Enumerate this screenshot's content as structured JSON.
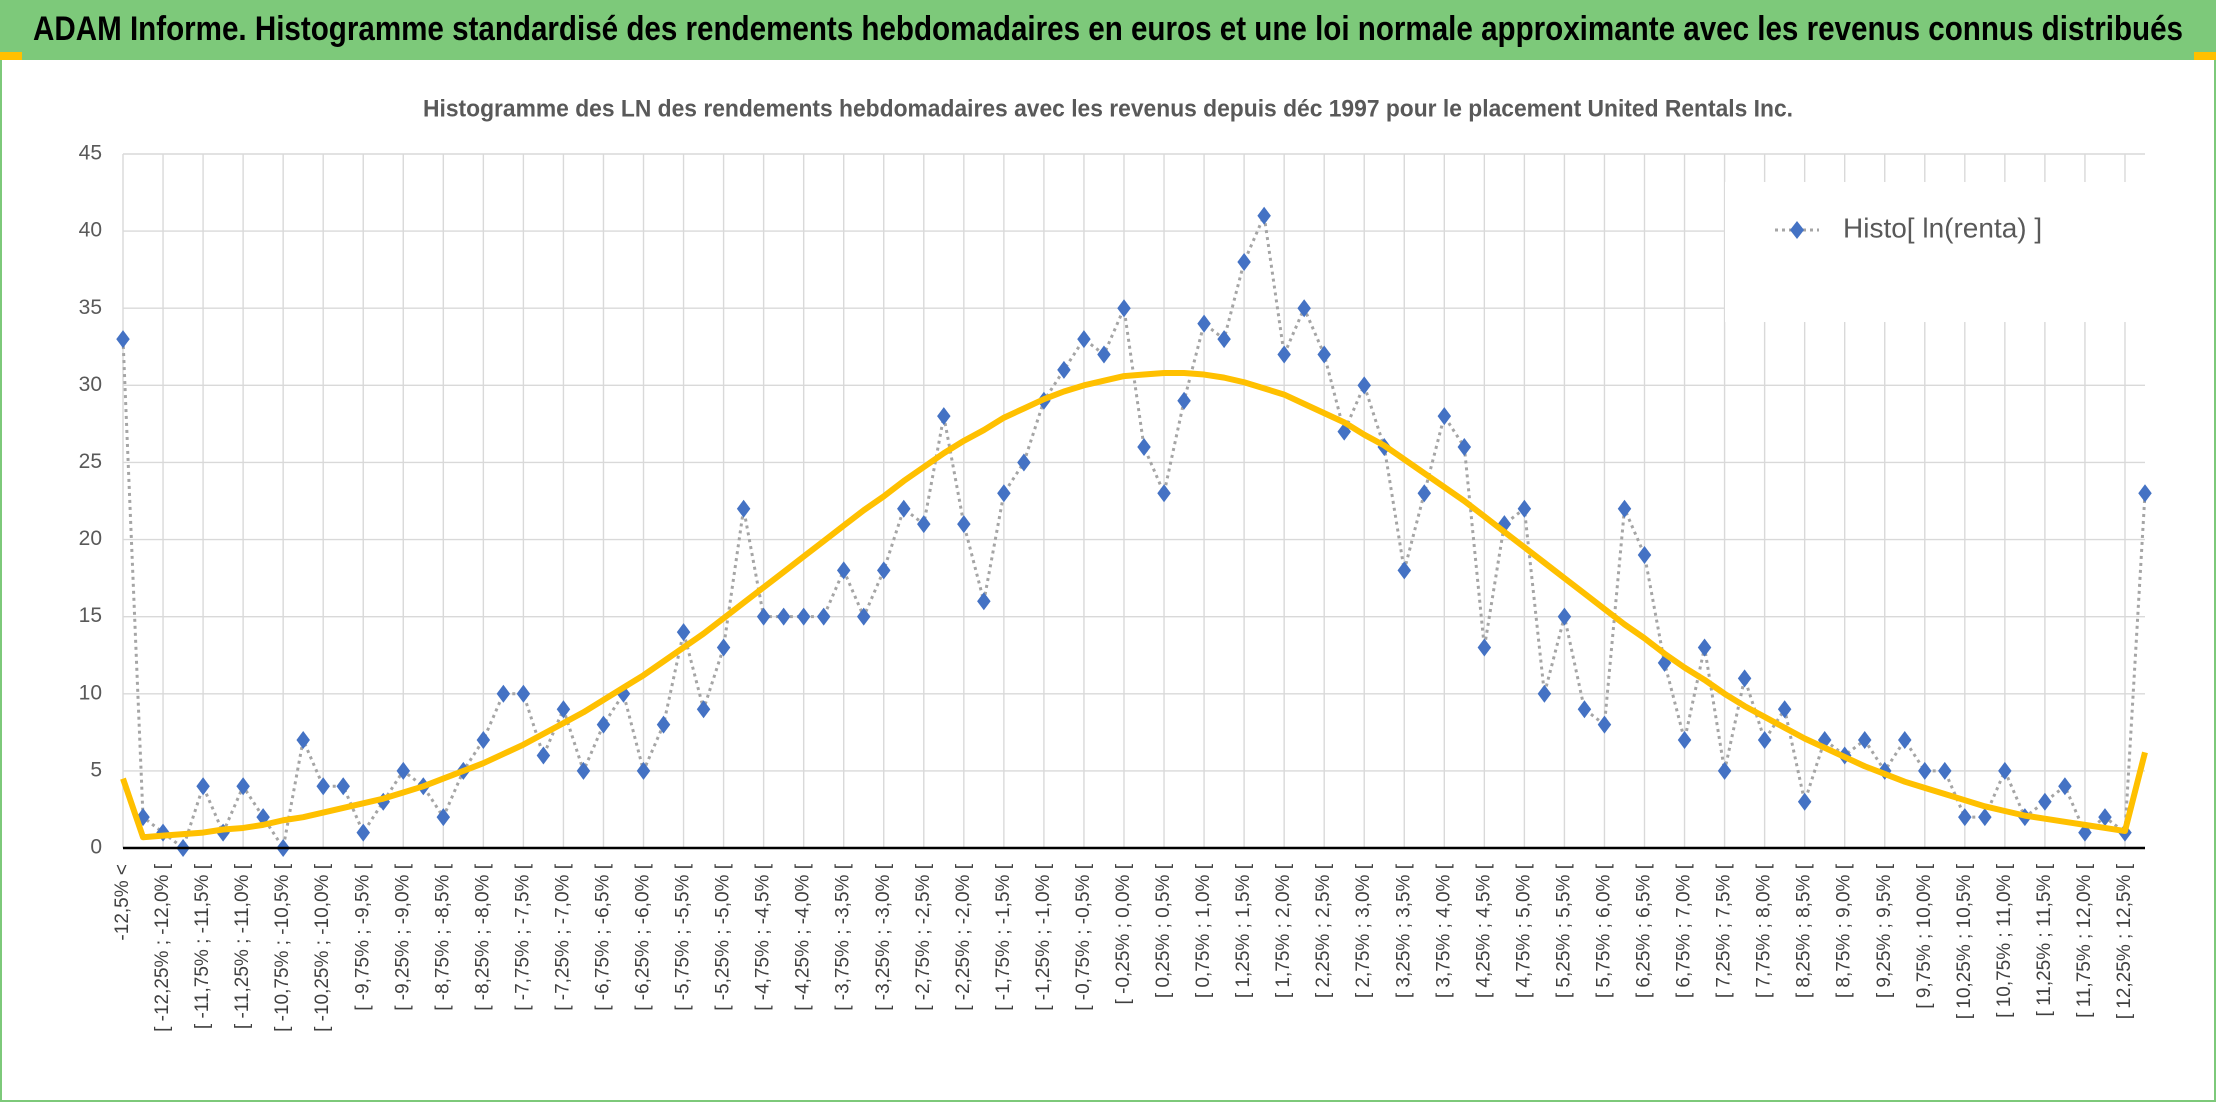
{
  "header": {
    "title": "ADAM Informe. Histogramme standardisé des rendements hebdomadaires en euros et une loi normale approximante avec les revenus connus distribués"
  },
  "chart_data": {
    "type": "line",
    "title": "Histogramme des LN des rendements hebdomadaires avec les revenus depuis déc 1997 pour le placement United Rentals Inc.",
    "categories": [
      "-12,5% <",
      null,
      "[ -12,25% ; -12,0% [",
      null,
      "[ -11,75% ; -11,5% [",
      null,
      "[ -11,25% ; -11,0% [",
      null,
      "[ -10,75% ; -10,5% [",
      null,
      "[ -10,25% ; -10,0% [",
      null,
      "[ -9,75% ; -9,5% [",
      null,
      "[ -9,25% ; -9,0% [",
      null,
      "[ -8,75% ; -8,5% [",
      null,
      "[ -8,25% ; -8,0% [",
      null,
      "[ -7,75% ; -7,5% [",
      null,
      "[ -7,25% ; -7,0% [",
      null,
      "[ -6,75% ; -6,5% [",
      null,
      "[ -6,25% ; -6,0% [",
      null,
      "[ -5,75% ; -5,5% [",
      null,
      "[ -5,25% ; -5,0% [",
      null,
      "[ -4,75% ; -4,5% [",
      null,
      "[ -4,25% ; -4,0% [",
      null,
      "[ -3,75% ; -3,5% [",
      null,
      "[ -3,25% ; -3,0% [",
      null,
      "[ -2,75% ; -2,5% [",
      null,
      "[ -2,25% ; -2,0% [",
      null,
      "[ -1,75% ; -1,5% [",
      null,
      "[ -1,25% ; -1,0% [",
      null,
      "[ -0,75% ; -0,5% [",
      null,
      "[ -0,25% ; 0,0% [",
      null,
      "[ 0,25% ; 0,5% [",
      null,
      "[ 0,75% ; 1,0% [",
      null,
      "[ 1,25% ; 1,5% [",
      null,
      "[ 1,75% ; 2,0% [",
      null,
      "[ 2,25% ; 2,5% [",
      null,
      "[ 2,75% ; 3,0% [",
      null,
      "[ 3,25% ; 3,5% [",
      null,
      "[ 3,75% ; 4,0% [",
      null,
      "[ 4,25% ; 4,5% [",
      null,
      "[ 4,75% ; 5,0% [",
      null,
      "[ 5,25% ; 5,5% [",
      null,
      "[ 5,75% ; 6,0% [",
      null,
      "[ 6,25% ; 6,5% [",
      null,
      "[ 6,75% ; 7,0% [",
      null,
      "[ 7,25% ; 7,5% [",
      null,
      "[ 7,75% ; 8,0% [",
      null,
      "[ 8,25% ; 8,5% [",
      null,
      "[ 8,75% ; 9,0% [",
      null,
      "[ 9,25% ; 9,5% [",
      null,
      "[ 9,75% ; 10,0% [",
      null,
      "[ 10,25% ; 10,5% [",
      null,
      "[ 10,75% ; 11,0% [",
      null,
      "[ 11,25% ; 11,5% [",
      null,
      "[ 11,75% ; 12,0% [",
      null,
      "[ 12,25% ; 12,5% [",
      null
    ],
    "series": [
      {
        "name": "Histo[ ln(renta) ]",
        "color": "#4472c4",
        "line_color": "#a5a5a5",
        "values": [
          33,
          2,
          1,
          0,
          4,
          1,
          4,
          2,
          0,
          7,
          4,
          4,
          1,
          3,
          5,
          4,
          2,
          5,
          7,
          10,
          10,
          6,
          9,
          5,
          8,
          10,
          5,
          8,
          14,
          9,
          13,
          22,
          15,
          15,
          15,
          15,
          18,
          15,
          18,
          22,
          21,
          28,
          21,
          16,
          23,
          25,
          29,
          31,
          33,
          32,
          35,
          26,
          23,
          29,
          34,
          33,
          38,
          41,
          32,
          35,
          32,
          27,
          30,
          26,
          18,
          23,
          28,
          26,
          13,
          21,
          22,
          10,
          15,
          9,
          8,
          22,
          19,
          12,
          7,
          13,
          5,
          11,
          7,
          9,
          3,
          7,
          6,
          7,
          5,
          7,
          5,
          5,
          2,
          2,
          5,
          2,
          3,
          4,
          1,
          2,
          1,
          23
        ]
      },
      {
        "color": "#ffc000",
        "values": [
          4.5,
          0.7,
          0.8,
          0.9,
          1.0,
          1.2,
          1.3,
          1.5,
          1.8,
          2.0,
          2.3,
          2.6,
          2.9,
          3.2,
          3.6,
          4.0,
          4.5,
          5.0,
          5.5,
          6.1,
          6.7,
          7.4,
          8.1,
          8.8,
          9.6,
          10.4,
          11.2,
          12.1,
          13.0,
          13.9,
          14.9,
          15.9,
          16.9,
          17.9,
          18.9,
          19.9,
          20.9,
          21.9,
          22.8,
          23.8,
          24.7,
          25.6,
          26.4,
          27.1,
          27.9,
          28.5,
          29.1,
          29.6,
          30.0,
          30.3,
          30.6,
          30.7,
          30.8,
          30.8,
          30.7,
          30.5,
          30.2,
          29.8,
          29.4,
          28.8,
          28.2,
          27.6,
          26.8,
          26.1,
          25.2,
          24.3,
          23.4,
          22.5,
          21.5,
          20.5,
          19.5,
          18.5,
          17.5,
          16.5,
          15.5,
          14.5,
          13.6,
          12.6,
          11.7,
          10.9,
          10.0,
          9.2,
          8.5,
          7.8,
          7.1,
          6.5,
          5.9,
          5.3,
          4.8,
          4.3,
          3.9,
          3.5,
          3.1,
          2.7,
          2.4,
          2.1,
          1.9,
          1.7,
          1.5,
          1.3,
          1.1,
          6.2
        ]
      }
    ],
    "ylim": [
      0,
      45
    ],
    "yticks": [
      0,
      5,
      10,
      15,
      20,
      25,
      30,
      35,
      40,
      45
    ],
    "grid": true,
    "legend": "top-right"
  }
}
